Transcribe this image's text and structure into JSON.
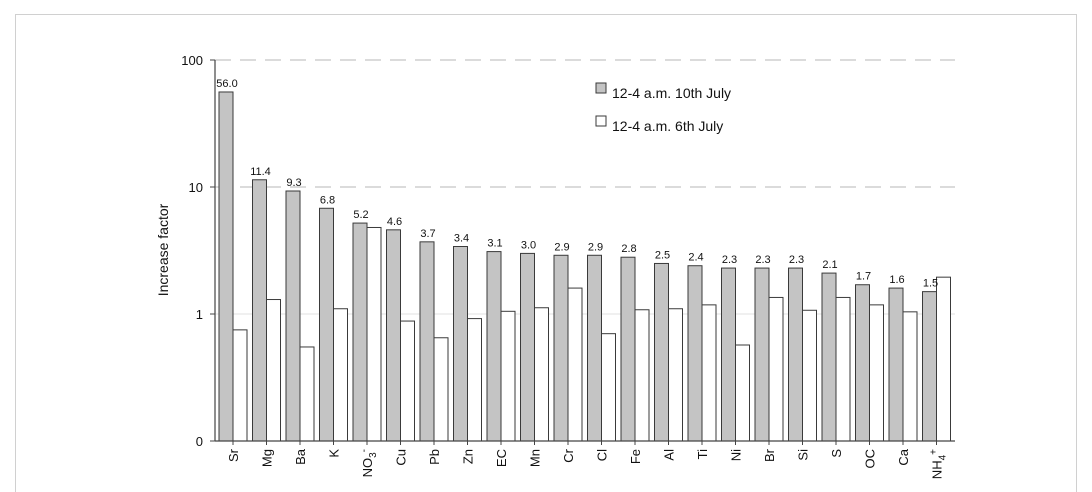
{
  "chart_data": {
    "type": "bar",
    "ylabel": "Increase factor",
    "yscale": "log",
    "y_ticks": [
      "100",
      "10",
      "1",
      "0"
    ],
    "categories": [
      "Sr",
      "Mg",
      "Ba",
      "K",
      "NO3-",
      "Cu",
      "Pb",
      "Zn",
      "EC",
      "Mn",
      "Cr",
      "Cl",
      "Fe",
      "Al",
      "Ti",
      "Ni",
      "Br",
      "Si",
      "S",
      "OC",
      "Ca",
      "NH4+"
    ],
    "series": [
      {
        "name": "12-4 a.m. 10th July",
        "color": "#c4c4c4",
        "values": [
          56.0,
          11.4,
          9.3,
          6.8,
          5.2,
          4.6,
          3.7,
          3.4,
          3.1,
          3.0,
          2.9,
          2.9,
          2.8,
          2.5,
          2.4,
          2.3,
          2.3,
          2.3,
          2.1,
          1.7,
          1.6,
          1.5
        ],
        "labels": [
          "56.0",
          "11.4",
          "9.3",
          "6.8",
          "5.2",
          "4.6",
          "3.7",
          "3.4",
          "3.1",
          "3.0",
          "2.9",
          "2.9",
          "2.8",
          "2.5",
          "2.4",
          "2.3",
          "2.3",
          "2.3",
          "2.1",
          "1.7",
          "1.6",
          "1.5"
        ]
      },
      {
        "name": "12-4 a.m. 6th July",
        "color": "#ffffff",
        "values": [
          0.75,
          1.3,
          0.55,
          1.1,
          4.8,
          0.88,
          0.65,
          0.92,
          1.05,
          1.12,
          1.6,
          0.7,
          1.08,
          1.1,
          1.18,
          0.57,
          1.35,
          1.07,
          1.35,
          1.18,
          1.04,
          1.95
        ]
      }
    ],
    "grid": "dashed-horizontal",
    "legend_position": "top-right"
  }
}
